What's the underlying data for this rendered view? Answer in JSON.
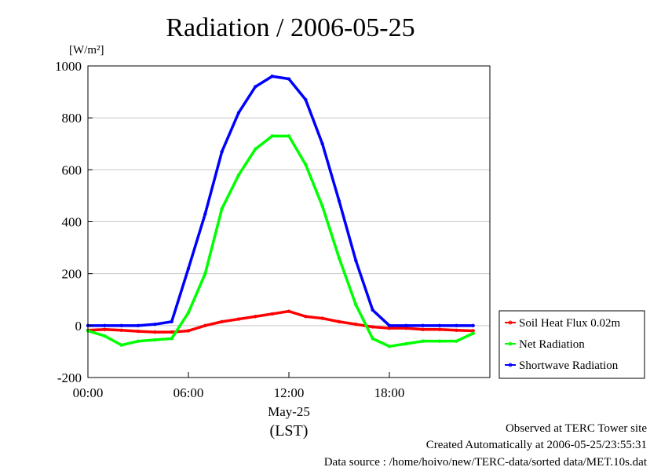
{
  "chart_data": {
    "type": "line",
    "title": "Radiation / 2006-05-25",
    "ylabel": "[W/m²]",
    "xlabel": "(LST)",
    "date_label": "May-25",
    "xlim": [
      0,
      24
    ],
    "ylim": [
      -200,
      1000
    ],
    "x_ticks": [
      "00:00",
      "06:00",
      "12:00",
      "18:00"
    ],
    "y_ticks": [
      "1000",
      "800",
      "600",
      "400",
      "200",
      "0",
      "-200"
    ],
    "grid": "horizontal",
    "legend_position": "bottom-right, outside plot",
    "x": [
      0,
      1,
      2,
      3,
      4,
      5,
      6,
      7,
      8,
      9,
      10,
      11,
      12,
      13,
      14,
      15,
      16,
      17,
      18,
      19,
      20,
      21,
      22,
      23
    ],
    "series": [
      {
        "name": "Soil Heat Flux 0.02m",
        "color": "#ff0000",
        "values": [
          -18,
          -15,
          -18,
          -22,
          -25,
          -25,
          -20,
          0,
          15,
          25,
          35,
          45,
          55,
          35,
          28,
          15,
          5,
          -5,
          -10,
          -10,
          -15,
          -15,
          -18,
          -20
        ]
      },
      {
        "name": "Net Radiation",
        "color": "#00ff00",
        "values": [
          -20,
          -40,
          -75,
          -60,
          -55,
          -50,
          50,
          200,
          450,
          580,
          680,
          730,
          730,
          620,
          460,
          260,
          80,
          -50,
          -80,
          -70,
          -60,
          -60,
          -60,
          -30
        ]
      },
      {
        "name": "Shortwave Radiation",
        "color": "#0000ff",
        "values": [
          0,
          0,
          0,
          0,
          5,
          15,
          220,
          430,
          670,
          820,
          920,
          960,
          950,
          870,
          700,
          480,
          250,
          60,
          0,
          0,
          0,
          0,
          0,
          0
        ]
      }
    ]
  },
  "footer": {
    "line1": "Observed at TERC Tower site",
    "line2": "Created Automatically at 2006-05-25/23:55:31",
    "line3": "Data source : /home/hoivo/new/TERC-data/sorted  data/MET.10s.dat"
  }
}
